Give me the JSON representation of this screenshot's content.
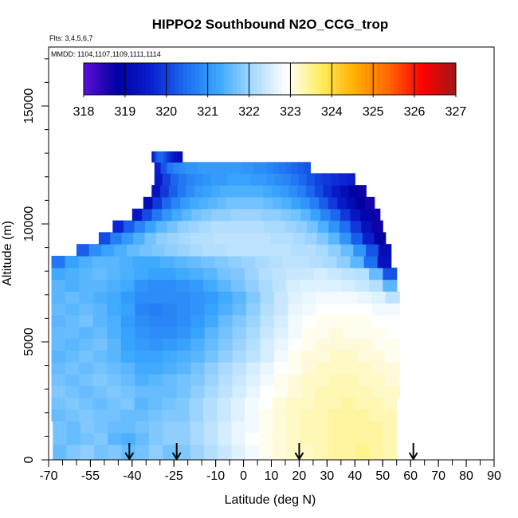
{
  "chart_data": {
    "type": "heatmap",
    "title": "HIPPO2 Southbound N2O_CCG_trop",
    "annotations": {
      "flights": "Flts: 3,4,5,6,7",
      "dates": "MMDD: 1104,1107,1109,1111,1114"
    },
    "xlabel": "Latitude (deg N)",
    "ylabel": "Altitude (m)",
    "xlim": [
      -70,
      90
    ],
    "ylim": [
      0,
      17500
    ],
    "x_ticks": [
      -70,
      -55,
      -40,
      -25,
      -10,
      0,
      10,
      20,
      30,
      40,
      50,
      60,
      70,
      80,
      90
    ],
    "x_tick_labels": [
      "-70",
      "-55",
      "-40",
      "-25",
      "-10",
      "0",
      "10",
      "20",
      "30",
      "40",
      "50",
      "60",
      "70",
      "80",
      "90"
    ],
    "y_ticks": [
      0,
      5000,
      10000,
      15000
    ],
    "y_tick_labels": [
      "0",
      "5000",
      "10000",
      "15000"
    ],
    "colorbar": {
      "min": 318,
      "max": 327,
      "tick_labels": [
        "318",
        "319",
        "320",
        "321",
        "322",
        "323",
        "324",
        "325",
        "326",
        "327"
      ],
      "colors": [
        "#5a10d8",
        "#0000a0",
        "#0a1fd0",
        "#1c6cf0",
        "#3ba8ff",
        "#a8daff",
        "#ffffff",
        "#ffee60",
        "#ffb000",
        "#ff6800",
        "#ff0000",
        "#a01818"
      ]
    },
    "flight_marker_latitudes": [
      -41,
      -24,
      20,
      61
    ],
    "grid": false,
    "legend": "colorbar top-inside",
    "rows": [
      {
        "alt": 400,
        "lat_min": -68.5,
        "lat_max": 55,
        "values": [
          321.6,
          321.8,
          321.9,
          321.7,
          321.8,
          321.6,
          321.7,
          321.9,
          321.7,
          321.8,
          322.0,
          322.2,
          322.4,
          322.6,
          322.8,
          323.0,
          323.1,
          323.2,
          323.2,
          323.3,
          323.4,
          323.4,
          323.5,
          323.4,
          323.3
        ]
      },
      {
        "alt": 900,
        "lat_min": -68.5,
        "lat_max": 55,
        "values": [
          321.7,
          321.6,
          321.7,
          321.8,
          321.5,
          321.4,
          321.6,
          321.8,
          321.9,
          321.9,
          322.1,
          322.3,
          322.5,
          322.7,
          322.9,
          323.0,
          323.1,
          323.2,
          323.3,
          323.3,
          323.4,
          323.4,
          323.4,
          323.4,
          323.3
        ]
      },
      {
        "alt": 1400,
        "lat_min": -68.5,
        "lat_max": 55,
        "values": [
          321.7,
          321.6,
          321.8,
          321.7,
          321.6,
          321.6,
          321.7,
          321.8,
          321.9,
          321.9,
          322.1,
          322.3,
          322.5,
          322.7,
          322.8,
          323.0,
          323.1,
          323.2,
          323.3,
          323.3,
          323.4,
          323.4,
          323.4,
          323.4,
          323.3
        ]
      },
      {
        "alt": 1900,
        "lat_min": -69,
        "lat_max": 55,
        "values": [
          321.6,
          321.7,
          321.8,
          321.7,
          321.7,
          321.6,
          321.6,
          321.7,
          321.8,
          321.8,
          322.0,
          322.2,
          322.4,
          322.6,
          322.8,
          323.0,
          323.1,
          323.2,
          323.3,
          323.3,
          323.4,
          323.4,
          323.4,
          323.3,
          323.3
        ]
      },
      {
        "alt": 2400,
        "lat_min": -69,
        "lat_max": 55,
        "values": [
          321.7,
          321.8,
          321.7,
          321.6,
          321.7,
          321.8,
          321.5,
          321.6,
          321.7,
          321.8,
          322.0,
          322.2,
          322.4,
          322.6,
          322.8,
          322.9,
          323.1,
          323.2,
          323.2,
          323.3,
          323.3,
          323.4,
          323.3,
          323.3,
          323.2
        ]
      },
      {
        "alt": 2900,
        "lat_min": -69,
        "lat_max": 56,
        "values": [
          321.8,
          321.7,
          321.6,
          321.7,
          321.8,
          321.7,
          321.6,
          321.6,
          321.6,
          321.7,
          321.9,
          322.1,
          322.3,
          322.5,
          322.7,
          322.9,
          323.0,
          323.1,
          323.2,
          323.3,
          323.3,
          323.3,
          323.3,
          323.2,
          323.2
        ]
      },
      {
        "alt": 3400,
        "lat_min": -69,
        "lat_max": 56,
        "values": [
          321.7,
          321.6,
          321.7,
          321.8,
          321.7,
          321.6,
          321.4,
          321.5,
          321.6,
          321.7,
          321.8,
          322.0,
          322.2,
          322.4,
          322.6,
          322.8,
          323.0,
          323.1,
          323.2,
          323.2,
          323.3,
          323.3,
          323.2,
          323.2,
          323.1
        ]
      },
      {
        "alt": 3900,
        "lat_min": -69,
        "lat_max": 56,
        "values": [
          321.6,
          321.7,
          321.6,
          321.7,
          321.6,
          321.5,
          321.3,
          321.3,
          321.4,
          321.5,
          321.7,
          321.9,
          322.1,
          322.3,
          322.5,
          322.7,
          322.9,
          323.0,
          323.1,
          323.2,
          323.2,
          323.2,
          323.2,
          323.1,
          323.1
        ]
      },
      {
        "alt": 4400,
        "lat_min": -69,
        "lat_max": 56,
        "values": [
          321.5,
          321.6,
          321.7,
          321.6,
          321.5,
          321.3,
          321.2,
          321.2,
          321.3,
          321.4,
          321.5,
          321.7,
          321.9,
          322.1,
          322.3,
          322.5,
          322.8,
          323.0,
          323.1,
          323.1,
          323.2,
          323.2,
          323.1,
          323.1,
          323.0
        ]
      },
      {
        "alt": 4900,
        "lat_min": -69,
        "lat_max": 56,
        "values": [
          321.6,
          321.5,
          321.6,
          321.7,
          321.5,
          321.2,
          321.1,
          321.0,
          321.1,
          321.2,
          321.4,
          321.6,
          321.8,
          322.0,
          322.2,
          322.5,
          322.7,
          322.9,
          323.0,
          323.1,
          323.1,
          323.1,
          323.1,
          323.0,
          323.0
        ]
      },
      {
        "alt": 5400,
        "lat_min": -69,
        "lat_max": 56,
        "values": [
          321.6,
          321.6,
          321.5,
          321.6,
          321.4,
          321.2,
          321.0,
          320.9,
          320.9,
          321.0,
          321.2,
          321.5,
          321.7,
          321.9,
          322.1,
          322.4,
          322.6,
          322.8,
          323.0,
          323.0,
          323.1,
          323.0,
          323.0,
          323.0,
          322.9
        ]
      },
      {
        "alt": 5900,
        "lat_min": -69,
        "lat_max": 56,
        "values": [
          321.5,
          321.6,
          321.7,
          321.5,
          321.4,
          321.1,
          320.9,
          320.8,
          320.8,
          320.9,
          321.1,
          321.3,
          321.6,
          321.8,
          322.0,
          322.3,
          322.5,
          322.8,
          322.9,
          323.0,
          323.0,
          323.0,
          323.0,
          322.9,
          322.9
        ]
      },
      {
        "alt": 6400,
        "lat_min": -69,
        "lat_max": 56,
        "values": [
          321.6,
          321.5,
          321.6,
          321.5,
          321.3,
          321.2,
          320.8,
          320.7,
          320.8,
          320.9,
          321.0,
          321.2,
          321.4,
          321.6,
          321.9,
          322.2,
          322.4,
          322.7,
          322.8,
          322.9,
          322.9,
          322.9,
          322.9,
          322.8,
          322.8
        ]
      },
      {
        "alt": 6900,
        "lat_min": -69,
        "lat_max": 56,
        "values": [
          321.5,
          321.6,
          321.5,
          321.4,
          321.3,
          321.1,
          320.9,
          320.9,
          320.9,
          320.9,
          321.0,
          321.1,
          321.3,
          321.5,
          321.8,
          322.1,
          322.4,
          322.6,
          322.7,
          322.8,
          322.8,
          322.8,
          322.7,
          322.6,
          322.3
        ]
      },
      {
        "alt": 7400,
        "lat_min": -69,
        "lat_max": 55,
        "values": [
          321.5,
          321.4,
          321.5,
          321.5,
          321.4,
          321.3,
          321.0,
          320.9,
          320.9,
          321.0,
          321.1,
          321.3,
          321.5,
          321.7,
          321.9,
          322.1,
          322.3,
          322.5,
          322.6,
          322.6,
          322.6,
          322.5,
          322.4,
          322.2,
          321.5
        ]
      },
      {
        "alt": 7900,
        "lat_min": -69,
        "lat_max": 55,
        "values": [
          321.3,
          321.4,
          321.5,
          321.6,
          321.5,
          321.4,
          321.3,
          321.2,
          321.2,
          321.3,
          321.4,
          321.5,
          321.7,
          321.8,
          322.0,
          322.2,
          322.3,
          322.4,
          322.4,
          322.5,
          322.4,
          322.3,
          322.2,
          321.6,
          320.2
        ]
      },
      {
        "alt": 8400,
        "lat_min": -69,
        "lat_max": 53,
        "values": [
          320.6,
          321.2,
          321.4,
          321.5,
          321.5,
          321.4,
          321.3,
          321.3,
          321.4,
          321.5,
          321.6,
          321.7,
          321.8,
          321.9,
          322.0,
          322.1,
          322.2,
          322.3,
          322.3,
          322.2,
          322.1,
          321.9,
          321.5,
          320.5,
          319.3
        ]
      },
      {
        "alt": 8900,
        "lat_min": -60,
        "lat_max": 53,
        "values": [
          320.3,
          320.9,
          321.2,
          321.4,
          321.6,
          321.7,
          321.8,
          321.9,
          322.0,
          322.1,
          322.2,
          322.2,
          322.3,
          322.3,
          322.3,
          322.3,
          322.3,
          322.2,
          322.2,
          322.1,
          321.9,
          321.6,
          321.0,
          320.2,
          319.2
        ]
      },
      {
        "alt": 9400,
        "lat_min": -52,
        "lat_max": 51,
        "values": [
          320.1,
          320.7,
          321.1,
          321.4,
          321.7,
          321.9,
          322.0,
          322.1,
          322.2,
          322.2,
          322.3,
          322.3,
          322.3,
          322.3,
          322.3,
          322.2,
          322.2,
          322.1,
          322.0,
          321.8,
          321.5,
          321.0,
          320.3,
          319.6,
          318.9
        ]
      },
      {
        "alt": 9900,
        "lat_min": -47,
        "lat_max": 50,
        "values": [
          319.7,
          320.3,
          320.8,
          321.2,
          321.5,
          321.7,
          321.9,
          322.0,
          322.1,
          322.2,
          322.2,
          322.2,
          322.2,
          322.2,
          322.1,
          322.1,
          322.0,
          321.9,
          321.7,
          321.4,
          321.0,
          320.5,
          319.9,
          319.3,
          318.7
        ]
      },
      {
        "alt": 10400,
        "lat_min": -40,
        "lat_max": 49,
        "values": [
          319.4,
          320.1,
          320.6,
          321.0,
          321.3,
          321.5,
          321.7,
          321.8,
          321.9,
          321.9,
          322.0,
          322.0,
          322.0,
          321.9,
          321.9,
          321.8,
          321.7,
          321.5,
          321.2,
          320.8,
          320.4,
          319.9,
          319.4,
          319.0,
          318.7
        ]
      },
      {
        "alt": 10900,
        "lat_min": -36,
        "lat_max": 47,
        "values": [
          319.2,
          319.9,
          320.4,
          320.8,
          321.1,
          321.3,
          321.4,
          321.5,
          321.6,
          321.7,
          321.7,
          321.7,
          321.7,
          321.6,
          321.5,
          321.4,
          321.2,
          321.0,
          320.7,
          320.3,
          319.9,
          319.5,
          319.1,
          318.8,
          318.6
        ]
      },
      {
        "alt": 11400,
        "lat_min": -33,
        "lat_max": 44,
        "values": [
          319.3,
          319.9,
          320.3,
          320.6,
          320.9,
          321.1,
          321.2,
          321.3,
          321.4,
          321.4,
          321.4,
          321.4,
          321.4,
          321.3,
          321.2,
          321.1,
          320.9,
          320.7,
          320.4,
          320.1,
          319.8,
          319.5,
          319.2,
          318.9,
          318.7
        ]
      },
      {
        "alt": 11900,
        "lat_min": -32,
        "lat_max": 40,
        "values": [
          319.5,
          320.0,
          320.4,
          320.6,
          320.8,
          320.9,
          321.0,
          321.1,
          321.1,
          321.2,
          321.2,
          321.2,
          321.1,
          321.1,
          321.0,
          320.9,
          320.8,
          320.6,
          320.4,
          320.2,
          320.0,
          319.9,
          319.8,
          319.7,
          319.6
        ]
      },
      {
        "alt": 12400,
        "lat_min": -32,
        "lat_max": 24,
        "values": [
          319.6,
          320.2,
          320.6,
          320.8,
          320.9,
          321.0,
          321.0,
          321.1,
          321.1,
          321.1,
          321.1,
          321.1,
          321.1,
          321.1,
          321.0,
          321.0,
          320.9,
          320.9,
          320.8,
          320.7,
          320.6,
          320.5,
          320.4,
          320.3,
          320.2
        ]
      },
      {
        "alt": 12850,
        "lat_min": -33,
        "lat_max": -22,
        "values": [
          319.3,
          319.6,
          319.9,
          320.1,
          320.3,
          320.4,
          320.4,
          320.4,
          320.4,
          320.3,
          320.2,
          320.1,
          320.0,
          319.9,
          319.8,
          319.7,
          319.6,
          319.5,
          319.4,
          319.3,
          319.3,
          319.2,
          319.2,
          319.2,
          319.2
        ]
      }
    ]
  }
}
